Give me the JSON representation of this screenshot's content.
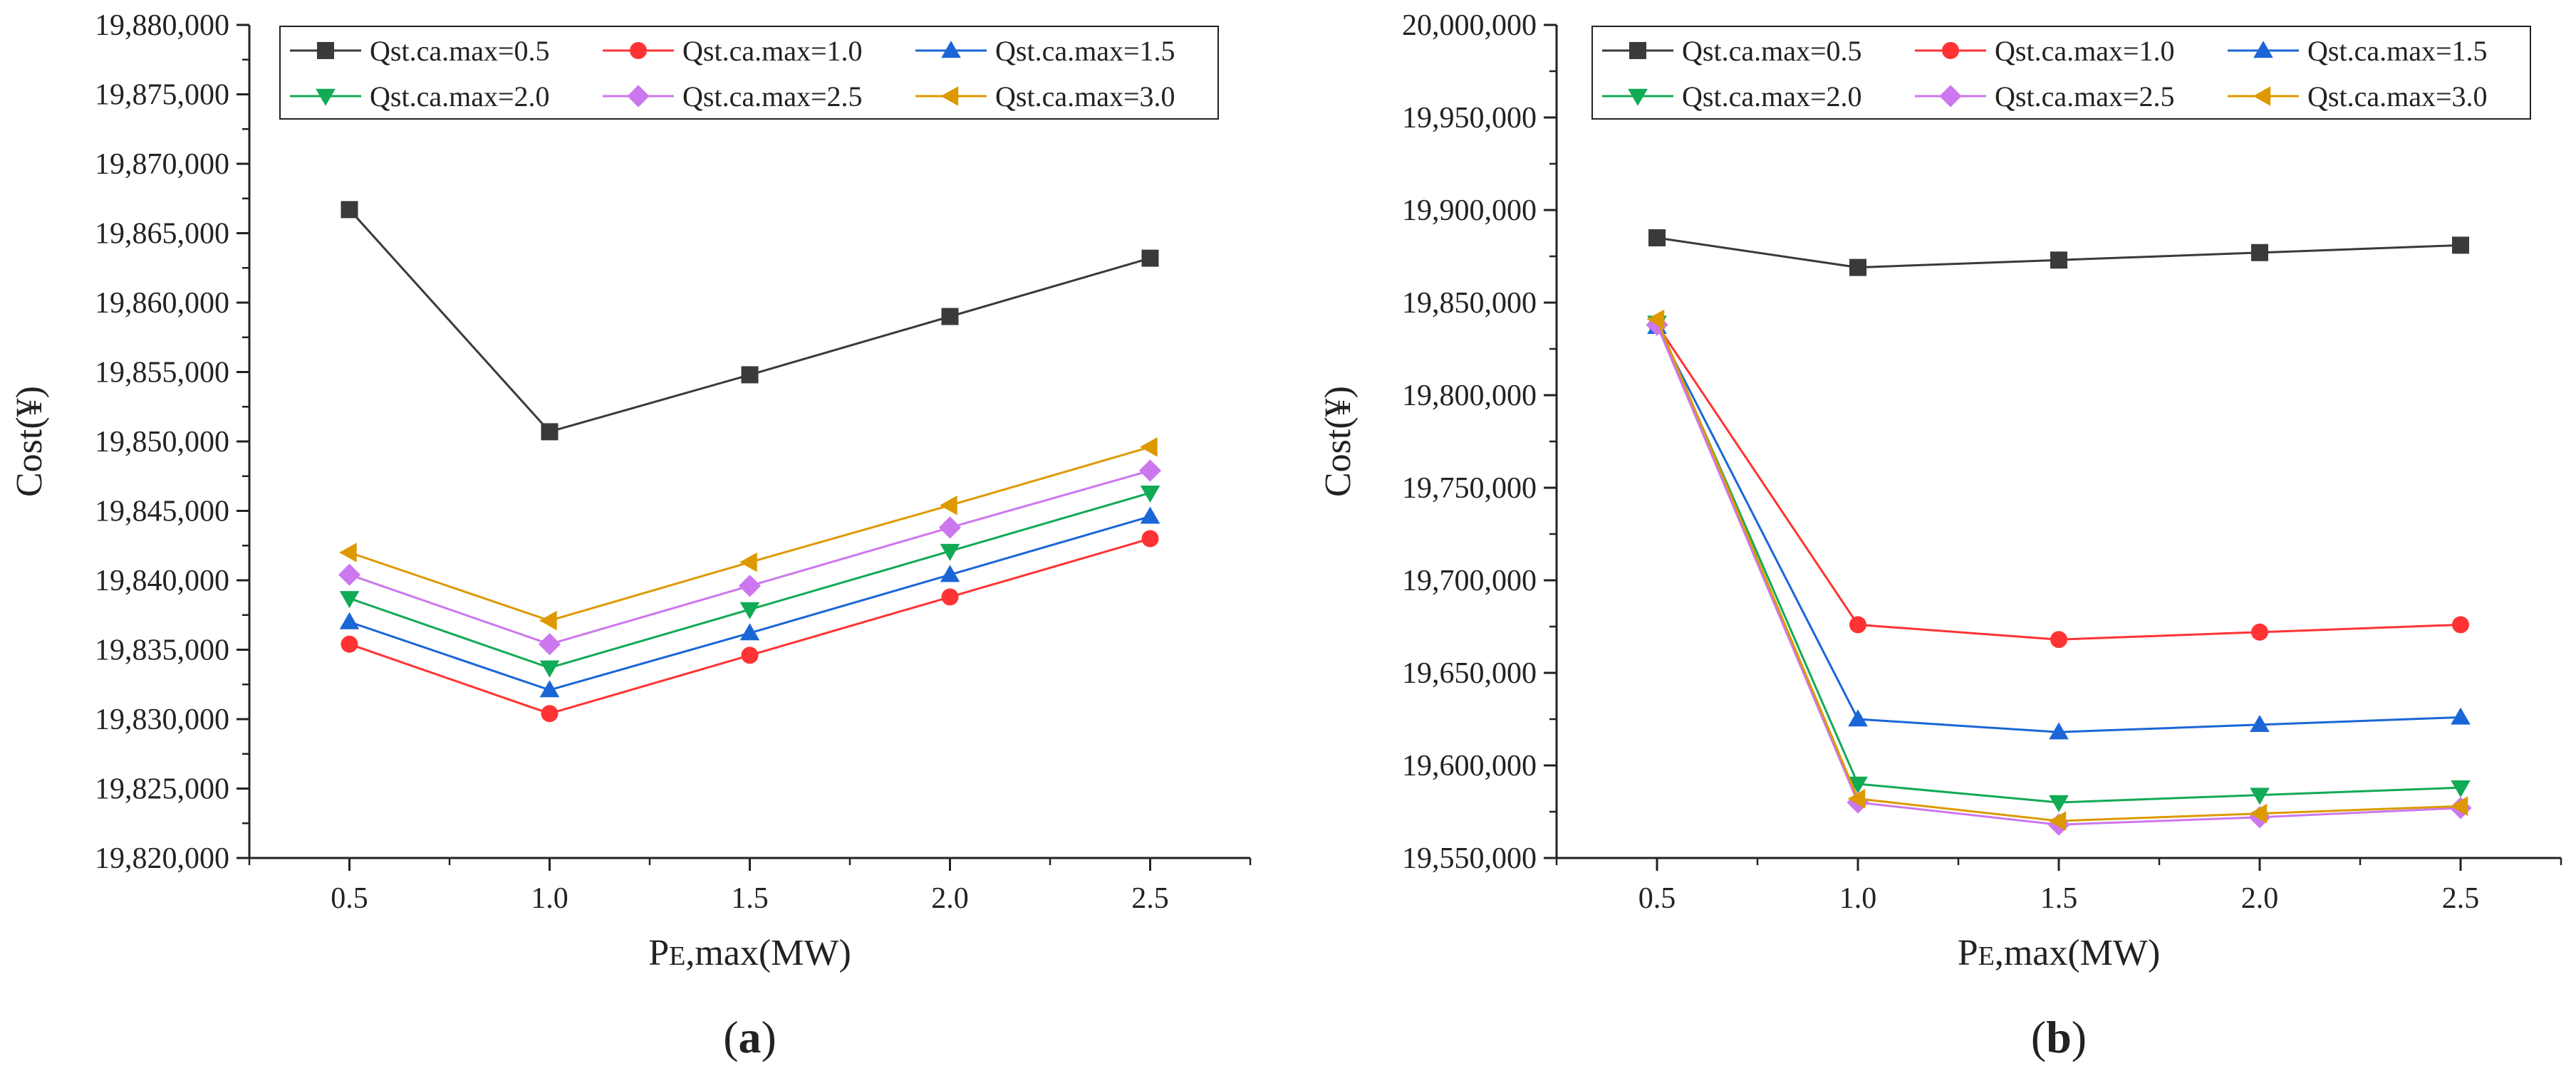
{
  "chart_data": [
    {
      "type": "line",
      "panel_label": "a",
      "xlabel_main": "P",
      "xlabel_sub": "E",
      "xlabel_rest": ",max(MW)",
      "ylabel": "Cost(¥)",
      "x": [
        0.5,
        1.0,
        1.5,
        2.0,
        2.5
      ],
      "xticks": [
        "0.5",
        "1.0",
        "1.5",
        "2.0",
        "2.5"
      ],
      "xlim": [
        0.25,
        2.75
      ],
      "ylim": [
        19820000,
        19880000
      ],
      "yticks": [
        19820000,
        19825000,
        19830000,
        19835000,
        19840000,
        19845000,
        19850000,
        19855000,
        19860000,
        19865000,
        19870000,
        19875000,
        19880000
      ],
      "ytick_labels": [
        "19,820,000",
        "19,825,000",
        "19,830,000",
        "19,835,000",
        "19,840,000",
        "19,845,000",
        "19,850,000",
        "19,855,000",
        "19,860,000",
        "19,865,000",
        "19,870,000",
        "19,875,000",
        "19,880,000"
      ],
      "legend_placement": "top",
      "series": [
        {
          "name": "Qst.ca.max=0.5",
          "color": "#3a3a3a",
          "marker": "square",
          "values": [
            19866700,
            19850700,
            19854800,
            19859000,
            19863200
          ]
        },
        {
          "name": "Qst.ca.max=1.0",
          "color": "#ff3333",
          "marker": "circle",
          "values": [
            19835400,
            19830400,
            19834600,
            19838800,
            19843000
          ]
        },
        {
          "name": "Qst.ca.max=1.5",
          "color": "#1a66d6",
          "marker": "triangle-up",
          "values": [
            19837000,
            19832100,
            19836200,
            19840400,
            19844600
          ]
        },
        {
          "name": "Qst.ca.max=2.0",
          "color": "#11aa55",
          "marker": "triangle-down",
          "values": [
            19838700,
            19833700,
            19837900,
            19842100,
            19846300
          ]
        },
        {
          "name": "Qst.ca.max=2.5",
          "color": "#cc77ee",
          "marker": "diamond",
          "values": [
            19840400,
            19835400,
            19839600,
            19843800,
            19847900
          ]
        },
        {
          "name": "Qst.ca.max=3.0",
          "color": "#dd9900",
          "marker": "triangle-left",
          "values": [
            19842000,
            19837100,
            19841300,
            19845400,
            19849600
          ]
        }
      ]
    },
    {
      "type": "line",
      "panel_label": "b",
      "xlabel_main": "P",
      "xlabel_sub": "E",
      "xlabel_rest": ",max(MW)",
      "ylabel": "Cost(¥)",
      "x": [
        0.5,
        1.0,
        1.5,
        2.0,
        2.5
      ],
      "xticks": [
        "0.5",
        "1.0",
        "1.5",
        "2.0",
        "2.5"
      ],
      "xlim": [
        0.25,
        2.75
      ],
      "ylim": [
        19550000,
        20000000
      ],
      "yticks": [
        19550000,
        19600000,
        19650000,
        19700000,
        19750000,
        19800000,
        19850000,
        19900000,
        19950000,
        20000000
      ],
      "ytick_labels": [
        "19,550,000",
        "19,600,000",
        "19,650,000",
        "19,700,000",
        "19,750,000",
        "19,800,000",
        "19,850,000",
        "19,900,000",
        "19,950,000",
        "20,000,000"
      ],
      "legend_placement": "top",
      "series": [
        {
          "name": "Qst.ca.max=0.5",
          "color": "#3a3a3a",
          "marker": "square",
          "values": [
            19885000,
            19869000,
            19873000,
            19877000,
            19881000
          ]
        },
        {
          "name": "Qst.ca.max=1.0",
          "color": "#ff3333",
          "marker": "circle",
          "values": [
            19838000,
            19676000,
            19668000,
            19672000,
            19676000
          ]
        },
        {
          "name": "Qst.ca.max=1.5",
          "color": "#1a66d6",
          "marker": "triangle-up",
          "values": [
            19837000,
            19625000,
            19618000,
            19622000,
            19626000
          ]
        },
        {
          "name": "Qst.ca.max=2.0",
          "color": "#11aa55",
          "marker": "triangle-down",
          "values": [
            19839000,
            19590000,
            19580000,
            19584000,
            19588000
          ]
        },
        {
          "name": "Qst.ca.max=2.5",
          "color": "#cc77ee",
          "marker": "diamond",
          "values": [
            19838000,
            19580000,
            19568000,
            19572000,
            19577000
          ]
        },
        {
          "name": "Qst.ca.max=3.0",
          "color": "#dd9900",
          "marker": "triangle-left",
          "values": [
            19841000,
            19582000,
            19570000,
            19574000,
            19578000
          ]
        }
      ]
    }
  ]
}
